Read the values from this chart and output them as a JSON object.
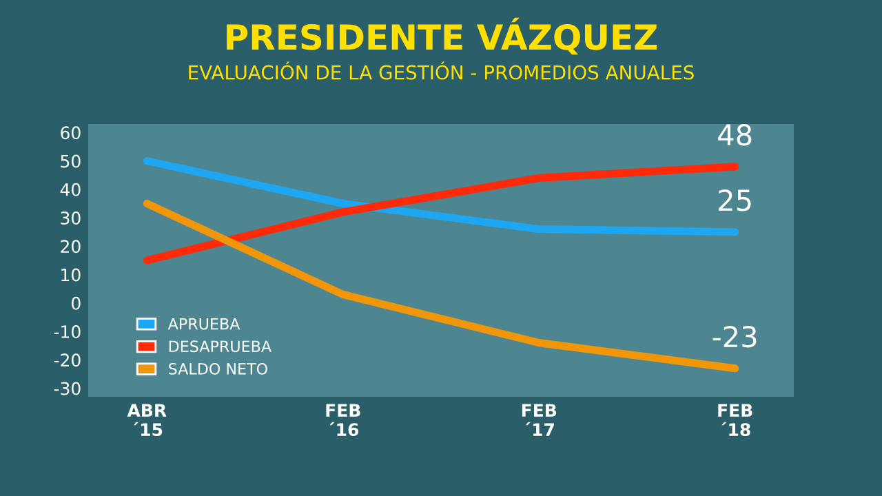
{
  "chart_data": {
    "type": "line",
    "title": "PRESIDENTE VÁZQUEZ",
    "subtitle": "EVALUACIÓN DE LA GESTIÓN - PROMEDIOS ANUALES",
    "categories": [
      "ABR\n´15",
      "FEB\n´16",
      "FEB\n´17",
      "FEB\n´18"
    ],
    "series": [
      {
        "name": "APRUEBA",
        "color": "#1ea7f0",
        "values": [
          50,
          35,
          26,
          25
        ],
        "value_labels": [
          null,
          null,
          null,
          "25"
        ]
      },
      {
        "name": "DESAPRUEBA",
        "color": "#ff2a0a",
        "values": [
          15,
          32,
          44,
          48
        ],
        "value_labels": [
          null,
          null,
          null,
          "48"
        ]
      },
      {
        "name": "SALDO NETO",
        "color": "#f0960a",
        "values": [
          35,
          3,
          -14,
          -23
        ],
        "value_labels": [
          null,
          null,
          null,
          "-23"
        ]
      }
    ],
    "ylim": [
      -33,
      63
    ],
    "yticks": [
      60,
      50,
      40,
      30,
      20,
      10,
      0,
      -10,
      -20,
      -30
    ],
    "grid": false,
    "legend": "lower left",
    "marker": "none",
    "line_style": "solid"
  }
}
